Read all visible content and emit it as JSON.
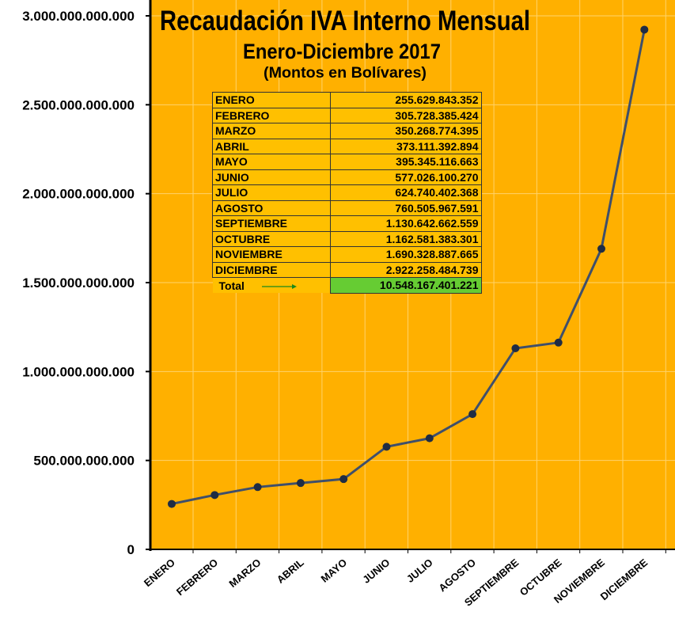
{
  "chart_data": {
    "type": "line",
    "title": "Recaudación IVA Interno Mensual",
    "subtitle": "Enero-Diciembre 2017",
    "note": "(Montos en Bolívares)",
    "categories": [
      "ENERO",
      "FEBRERO",
      "MARZO",
      "ABRIL",
      "MAYO",
      "JUNIO",
      "JULIO",
      "AGOSTO",
      "SEPTIEMBRE",
      "OCTUBRE",
      "NOVIEMBRE",
      "DICIEMBRE"
    ],
    "values": [
      255629843352,
      305728385424,
      350268774395,
      373111392894,
      395345116663,
      577026100270,
      624740402368,
      760505967591,
      1130642662559,
      1162581383301,
      1690328887665,
      2922258484739
    ],
    "ylim": [
      0,
      3000000000000
    ],
    "yticks": [
      0,
      500000000000,
      1000000000000,
      1500000000000,
      2000000000000,
      2500000000000,
      3000000000000
    ],
    "ytick_labels": [
      "0",
      "500.000.000.000",
      "1.000.000.000.000",
      "1.500.000.000.000",
      "2.000.000.000.000",
      "2.500.000.000.000",
      "3.000.000.000.000"
    ],
    "xlabel": "",
    "ylabel": "",
    "grid": true,
    "colors": {
      "background": "#ffb000",
      "line": "#3f4f6b",
      "marker": "#1f2c44",
      "grid": "#ffd36b",
      "total_cell": "#66cc33",
      "table_cell": "#ffc000",
      "arrow": "#1a8a1a"
    }
  },
  "table": {
    "rows": [
      {
        "month": "ENERO",
        "amount": "255.629.843.352"
      },
      {
        "month": "FEBRERO",
        "amount": "305.728.385.424"
      },
      {
        "month": "MARZO",
        "amount": "350.268.774.395"
      },
      {
        "month": "ABRIL",
        "amount": "373.111.392.894"
      },
      {
        "month": "MAYO",
        "amount": "395.345.116.663"
      },
      {
        "month": "JUNIO",
        "amount": "577.026.100.270"
      },
      {
        "month": "JULIO",
        "amount": "624.740.402.368"
      },
      {
        "month": "AGOSTO",
        "amount": "760.505.967.591"
      },
      {
        "month": "SEPTIEMBRE",
        "amount": "1.130.642.662.559"
      },
      {
        "month": "OCTUBRE",
        "amount": "1.162.581.383.301"
      },
      {
        "month": "NOVIEMBRE",
        "amount": "1.690.328.887.665"
      },
      {
        "month": "DICIEMBRE",
        "amount": "2.922.258.484.739"
      }
    ],
    "total_label": "Total",
    "total_amount": "10.548.167.401.221"
  }
}
